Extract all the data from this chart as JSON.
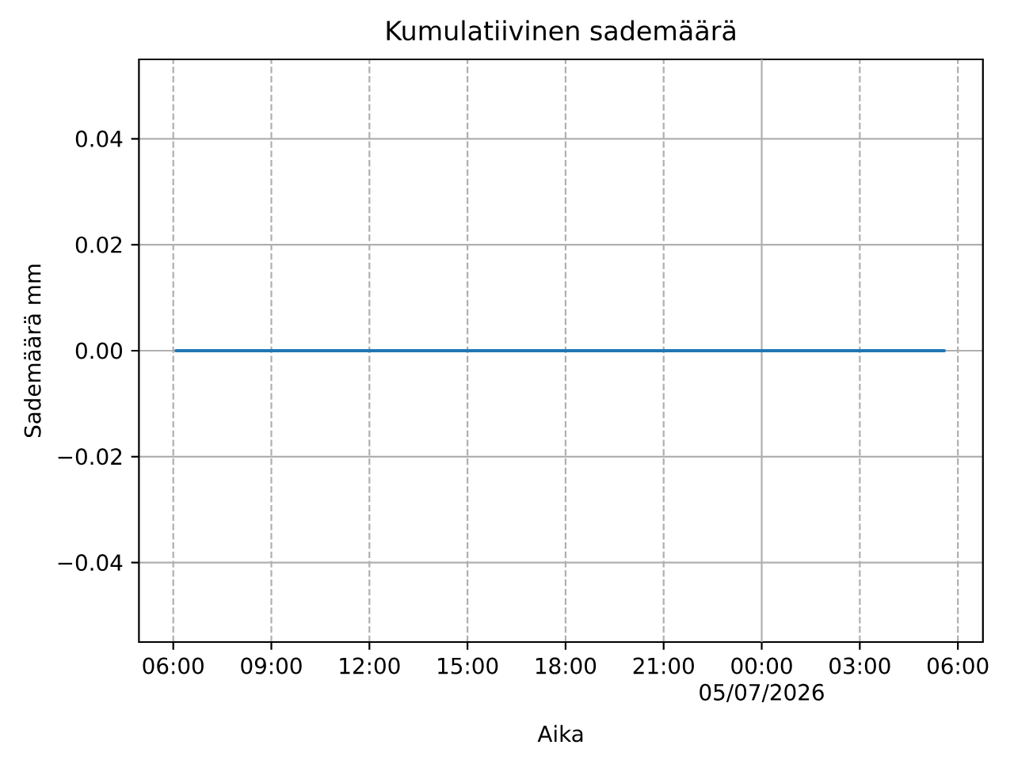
{
  "chart_data": {
    "type": "line",
    "title": "Kumulatiivinen sademäärä",
    "xlabel": "Aika",
    "ylabel": "Sademäärä mm",
    "x": [
      "2026-07-04T06:05",
      "2026-07-05T05:35"
    ],
    "series": [
      {
        "color": "#1f77b4",
        "values": [
          0,
          0
        ]
      }
    ],
    "xlim": [
      "2026-07-04T04:57",
      "2026-07-05T06:46"
    ],
    "xticks": [
      {
        "value": "2026-07-04T06:00",
        "label": "06:00"
      },
      {
        "value": "2026-07-04T09:00",
        "label": "09:00"
      },
      {
        "value": "2026-07-04T12:00",
        "label": "12:00"
      },
      {
        "value": "2026-07-04T15:00",
        "label": "15:00"
      },
      {
        "value": "2026-07-04T18:00",
        "label": "18:00"
      },
      {
        "value": "2026-07-04T21:00",
        "label": "21:00"
      },
      {
        "value": "2026-07-05T00:00",
        "label": "00:00 05/07/2026"
      },
      {
        "value": "2026-07-05T03:00",
        "label": "03:00"
      },
      {
        "value": "2026-07-05T06:00",
        "label": "06:00"
      }
    ],
    "ylim": [
      -0.055,
      0.055
    ],
    "yticks": [
      {
        "value": -0.04,
        "label": "−0.04"
      },
      {
        "value": -0.02,
        "label": "−0.02"
      },
      {
        "value": 0,
        "label": "0.00"
      },
      {
        "value": 0.02,
        "label": "0.02"
      },
      {
        "value": 0.04,
        "label": "0.04"
      }
    ],
    "grid": true
  }
}
